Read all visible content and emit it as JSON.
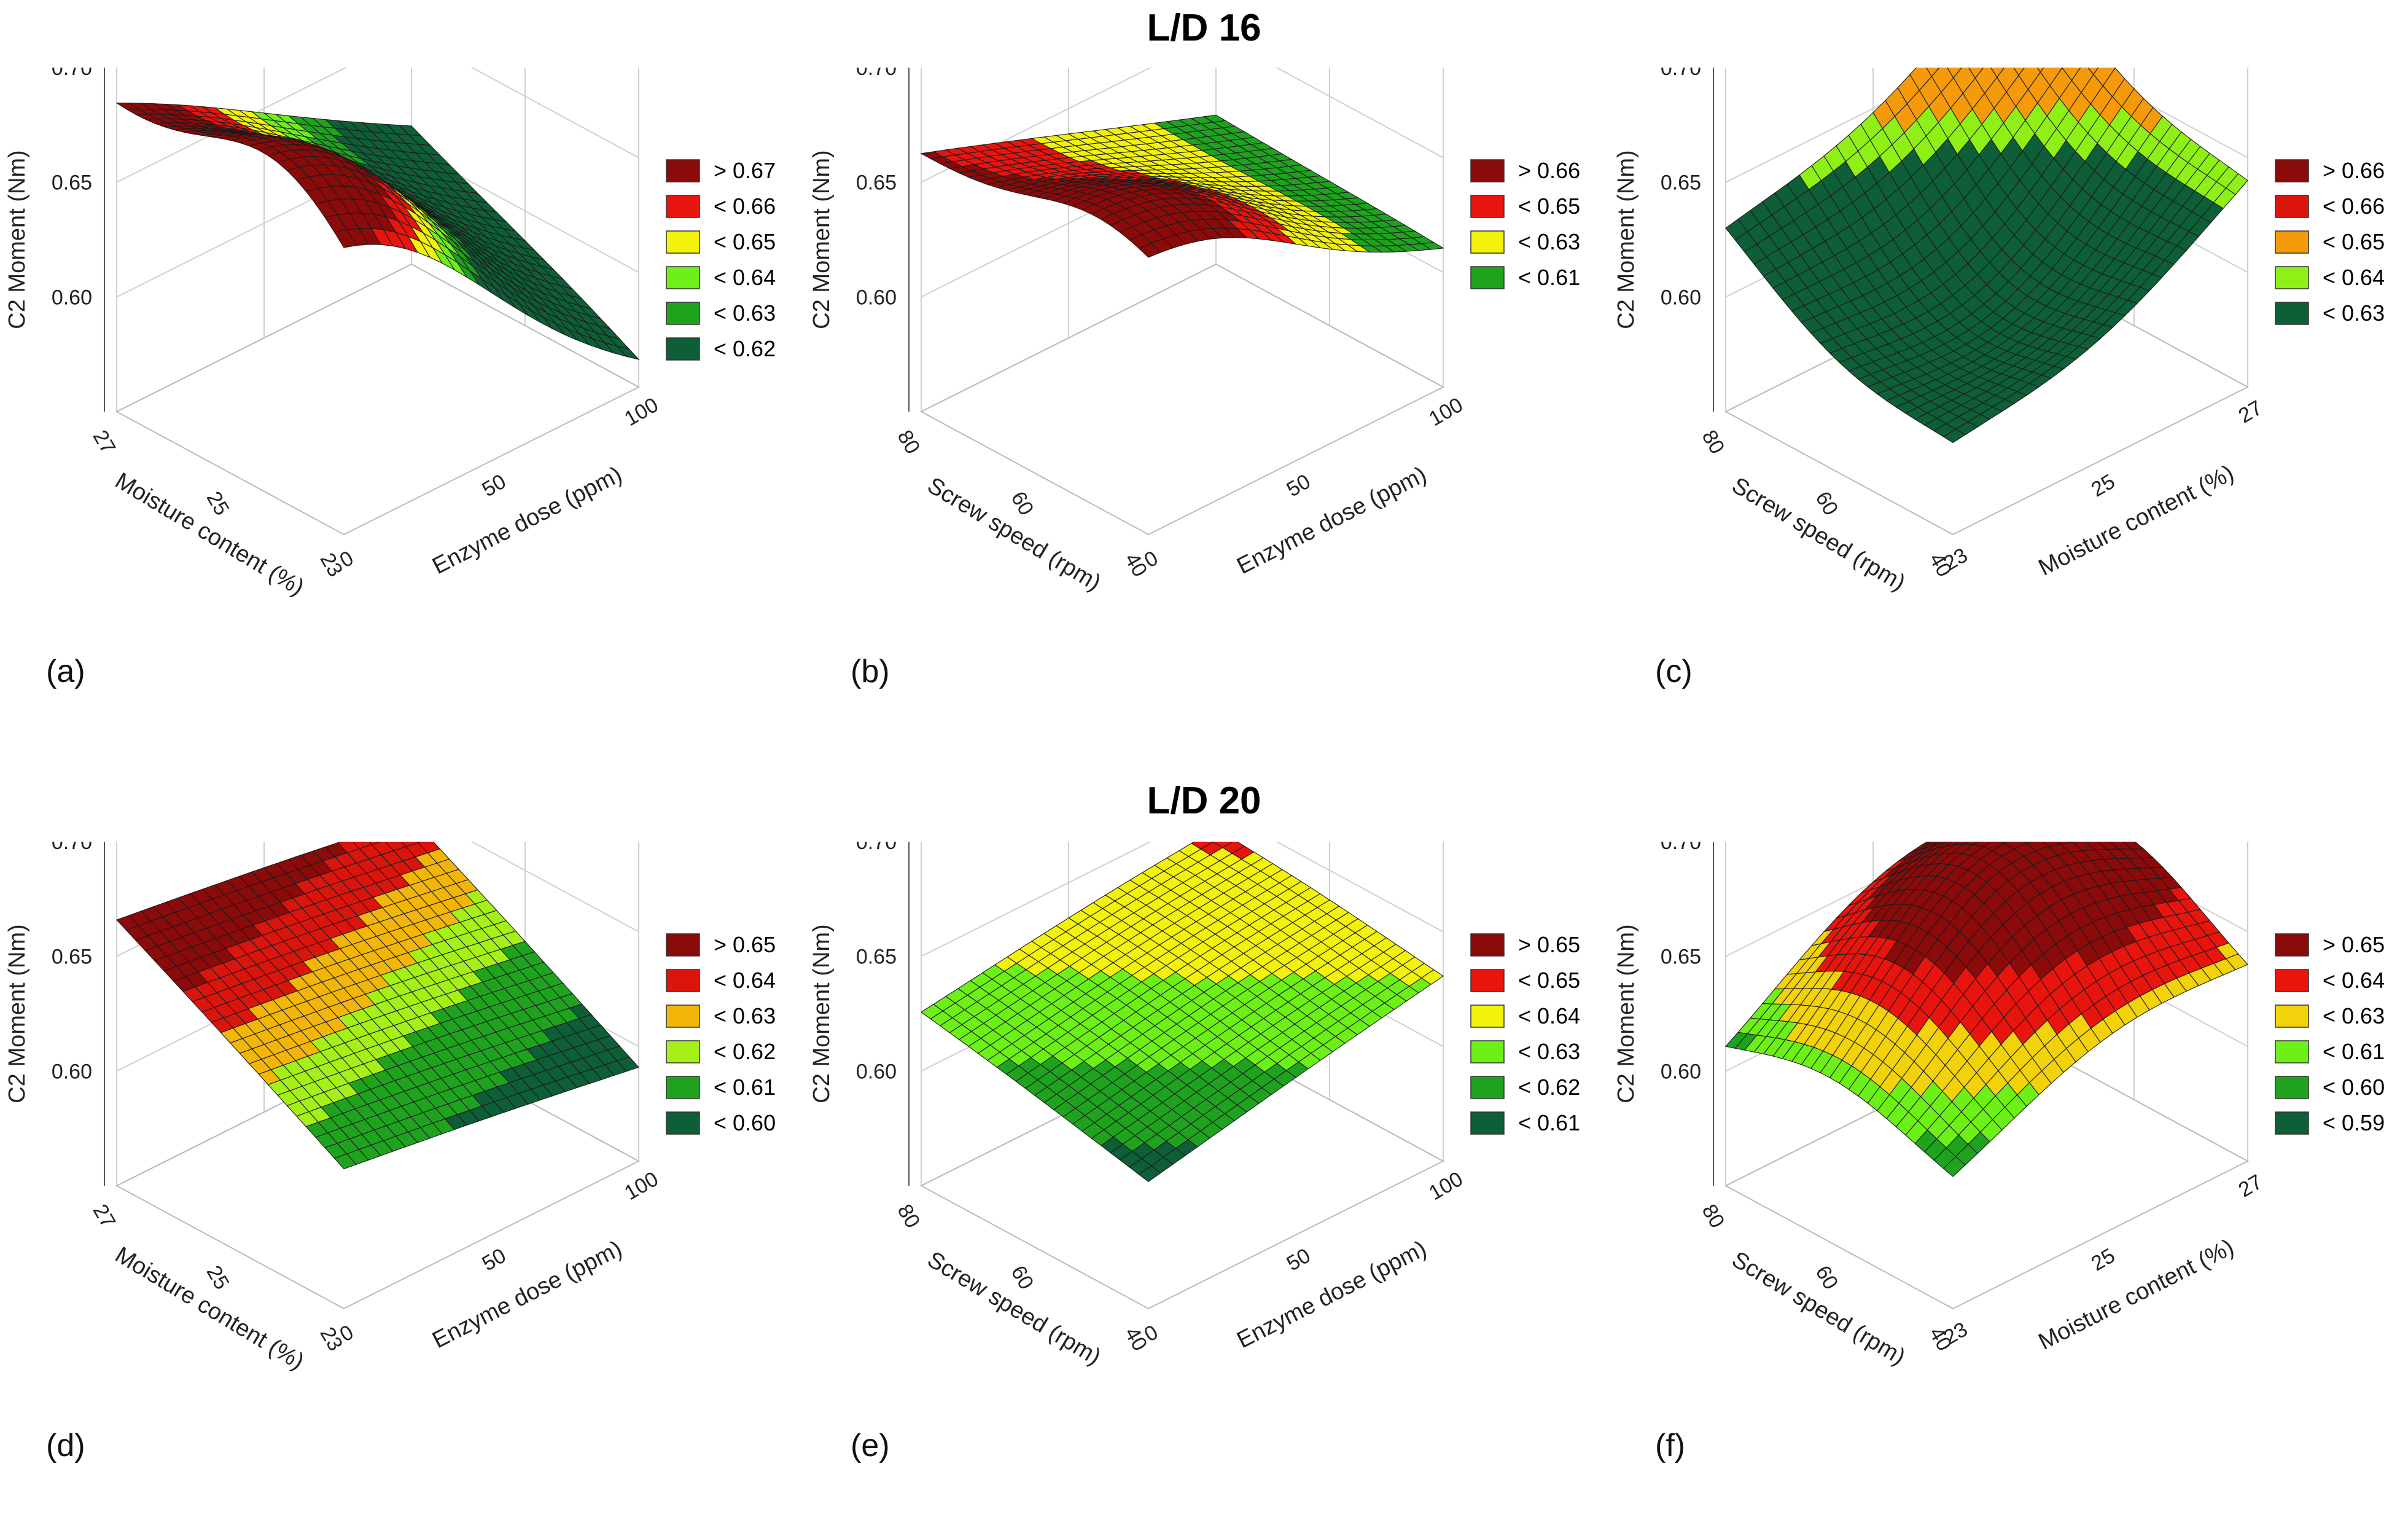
{
  "titles": {
    "top": "L/D 16",
    "bottom": "L/D 20"
  },
  "chart_data": [
    {
      "type": "surface3d",
      "letter": "(a)",
      "zlabel": "C2 Moment (Nm)",
      "zticks": [
        "0.60",
        "0.65",
        "0.70"
      ],
      "zlim": [
        0.55,
        0.7
      ],
      "left_label": "Moisture content (%)",
      "left_ticks": [
        "23",
        "25",
        "27"
      ],
      "right_label": "Enzyme dose (ppm)",
      "right_ticks": [
        "0",
        "50",
        "100"
      ],
      "corners": {
        "back_left": 0.68,
        "front_left": 0.64,
        "front_right": 0.56,
        "back_right": 0.61
      },
      "peak": {
        "u": 0.25,
        "v": 0.15,
        "value": 0.688,
        "sigma": 0.35
      },
      "legend": [
        {
          "label": "> 0.67",
          "color": "#8b0a0a"
        },
        {
          "label": "< 0.66",
          "color": "#e8140e"
        },
        {
          "label": "< 0.65",
          "color": "#f2f20a"
        },
        {
          "label": "< 0.64",
          "color": "#6cf018"
        },
        {
          "label": "< 0.63",
          "color": "#1fa31f"
        },
        {
          "label": "< 0.62",
          "color": "#0e5e38"
        }
      ],
      "thresholds": [
        0.67,
        0.66,
        0.65,
        0.64,
        0.63
      ]
    },
    {
      "type": "surface3d",
      "letter": "(b)",
      "zlabel": "C2 Moment (Nm)",
      "zticks": [
        "0.60",
        "0.65",
        "0.70"
      ],
      "zlim": [
        0.55,
        0.7
      ],
      "left_label": "Screw speed (rpm)",
      "left_ticks": [
        "40",
        "60",
        "80"
      ],
      "right_label": "Enzyme dose (ppm)",
      "right_ticks": [
        "0",
        "50",
        "100"
      ],
      "corners": {
        "back_left": 0.662,
        "front_left": 0.655,
        "front_right": 0.61,
        "back_right": 0.615
      },
      "peak": {
        "u": 0.2,
        "v": 0.2,
        "value": 0.672,
        "sigma": 0.3
      },
      "legend": [
        {
          "label": "> 0.66",
          "color": "#8b0a0a"
        },
        {
          "label": "< 0.65",
          "color": "#e8140e"
        },
        {
          "label": "< 0.63",
          "color": "#f2f20a"
        },
        {
          "label": "< 0.61",
          "color": "#1fa31f"
        }
      ],
      "thresholds": [
        0.66,
        0.645,
        0.625
      ]
    },
    {
      "type": "surface3d",
      "letter": "(c)",
      "zlabel": "C2 Moment (Nm)",
      "zticks": [
        "0.60",
        "0.65",
        "0.70"
      ],
      "zlim": [
        0.55,
        0.7
      ],
      "left_label": "Screw speed (rpm)",
      "left_ticks": [
        "40",
        "60",
        "80"
      ],
      "right_label": "Moisture content (%)",
      "right_ticks": [
        "23",
        "25",
        "27"
      ],
      "corners": {
        "back_left": 0.64,
        "front_left": 0.6,
        "front_right": 0.65,
        "back_right": 0.7
      },
      "peak": {
        "u": 0.5,
        "v": 0.5,
        "value": 0.6,
        "sigma": 0.4
      },
      "legend": [
        {
          "label": "> 0.66",
          "color": "#8b0a0a"
        },
        {
          "label": "< 0.66",
          "color": "#d9150e"
        },
        {
          "label": "< 0.65",
          "color": "#f59a0a"
        },
        {
          "label": "< 0.64",
          "color": "#8ff018"
        },
        {
          "label": "< 0.63",
          "color": "#0e5e38"
        }
      ],
      "thresholds": [
        0.675,
        0.66,
        0.645,
        0.635
      ]
    },
    {
      "type": "surface3d",
      "letter": "(d)",
      "zlabel": "C2 Moment (Nm)",
      "zticks": [
        "0.60",
        "0.65",
        "0.70"
      ],
      "zlim": [
        0.55,
        0.7
      ],
      "left_label": "Moisture content (%)",
      "left_ticks": [
        "23",
        "25",
        "27"
      ],
      "right_label": "Enzyme dose (ppm)",
      "right_ticks": [
        "0",
        "50",
        "100"
      ],
      "corners": {
        "back_left": 0.665,
        "front_left": 0.61,
        "front_right": 0.59,
        "back_right": 0.645
      },
      "peak": {
        "u": 0.5,
        "v": 0.5,
        "value": 0.63,
        "sigma": 0.5
      },
      "legend": [
        {
          "label": "> 0.65",
          "color": "#8b0a0a"
        },
        {
          "label": "< 0.64",
          "color": "#d9150e"
        },
        {
          "label": "< 0.63",
          "color": "#f2b60a"
        },
        {
          "label": "< 0.62",
          "color": "#a5f018"
        },
        {
          "label": "< 0.61",
          "color": "#1fa31f"
        },
        {
          "label": "< 0.60",
          "color": "#0e5e38"
        }
      ],
      "thresholds": [
        0.65,
        0.64,
        0.63,
        0.62,
        0.605
      ]
    },
    {
      "type": "surface3d",
      "letter": "(e)",
      "zlabel": "C2 Moment (Nm)",
      "zticks": [
        "0.60",
        "0.65",
        "0.70"
      ],
      "zlim": [
        0.55,
        0.7
      ],
      "left_label": "Screw speed (rpm)",
      "left_ticks": [
        "40",
        "60",
        "80"
      ],
      "right_label": "Enzyme dose (ppm)",
      "right_ticks": [
        "0",
        "50",
        "100"
      ],
      "corners": {
        "back_left": 0.625,
        "front_left": 0.605,
        "front_right": 0.63,
        "back_right": 0.64
      },
      "peak": {
        "u": 0.6,
        "v": 0.6,
        "value": 0.632,
        "sigma": 0.4
      },
      "legend": [
        {
          "label": "> 0.65",
          "color": "#8b0a0a"
        },
        {
          "label": "< 0.65",
          "color": "#e8140e"
        },
        {
          "label": "< 0.64",
          "color": "#f2f20a"
        },
        {
          "label": "< 0.63",
          "color": "#6cf018"
        },
        {
          "label": "< 0.62",
          "color": "#1fa31f"
        },
        {
          "label": "< 0.61",
          "color": "#0e5e38"
        }
      ],
      "thresholds": [
        0.65,
        0.64,
        0.63,
        0.62,
        0.61
      ]
    },
    {
      "type": "surface3d",
      "letter": "(f)",
      "zlabel": "C2 Moment (Nm)",
      "zticks": [
        "0.60",
        "0.65",
        "0.70"
      ],
      "zlim": [
        0.55,
        0.7
      ],
      "left_label": "Screw speed (rpm)",
      "left_ticks": [
        "40",
        "60",
        "80"
      ],
      "right_label": "Moisture content (%)",
      "right_ticks": [
        "23",
        "25",
        "27"
      ],
      "corners": {
        "back_left": 0.6,
        "front_left": 0.6,
        "front_right": 0.625,
        "back_right": 0.64
      },
      "peak": {
        "u": 0.55,
        "v": 0.55,
        "value": 0.68,
        "sigma": 0.38
      },
      "legend": [
        {
          "label": "> 0.65",
          "color": "#8b0a0a"
        },
        {
          "label": "< 0.64",
          "color": "#e8140e"
        },
        {
          "label": "< 0.63",
          "color": "#f2d20a"
        },
        {
          "label": "< 0.61",
          "color": "#6cf018"
        },
        {
          "label": "< 0.60",
          "color": "#1fa31f"
        },
        {
          "label": "< 0.59",
          "color": "#0e5e38"
        }
      ],
      "thresholds": [
        0.655,
        0.64,
        0.625,
        0.615,
        0.605
      ]
    }
  ]
}
